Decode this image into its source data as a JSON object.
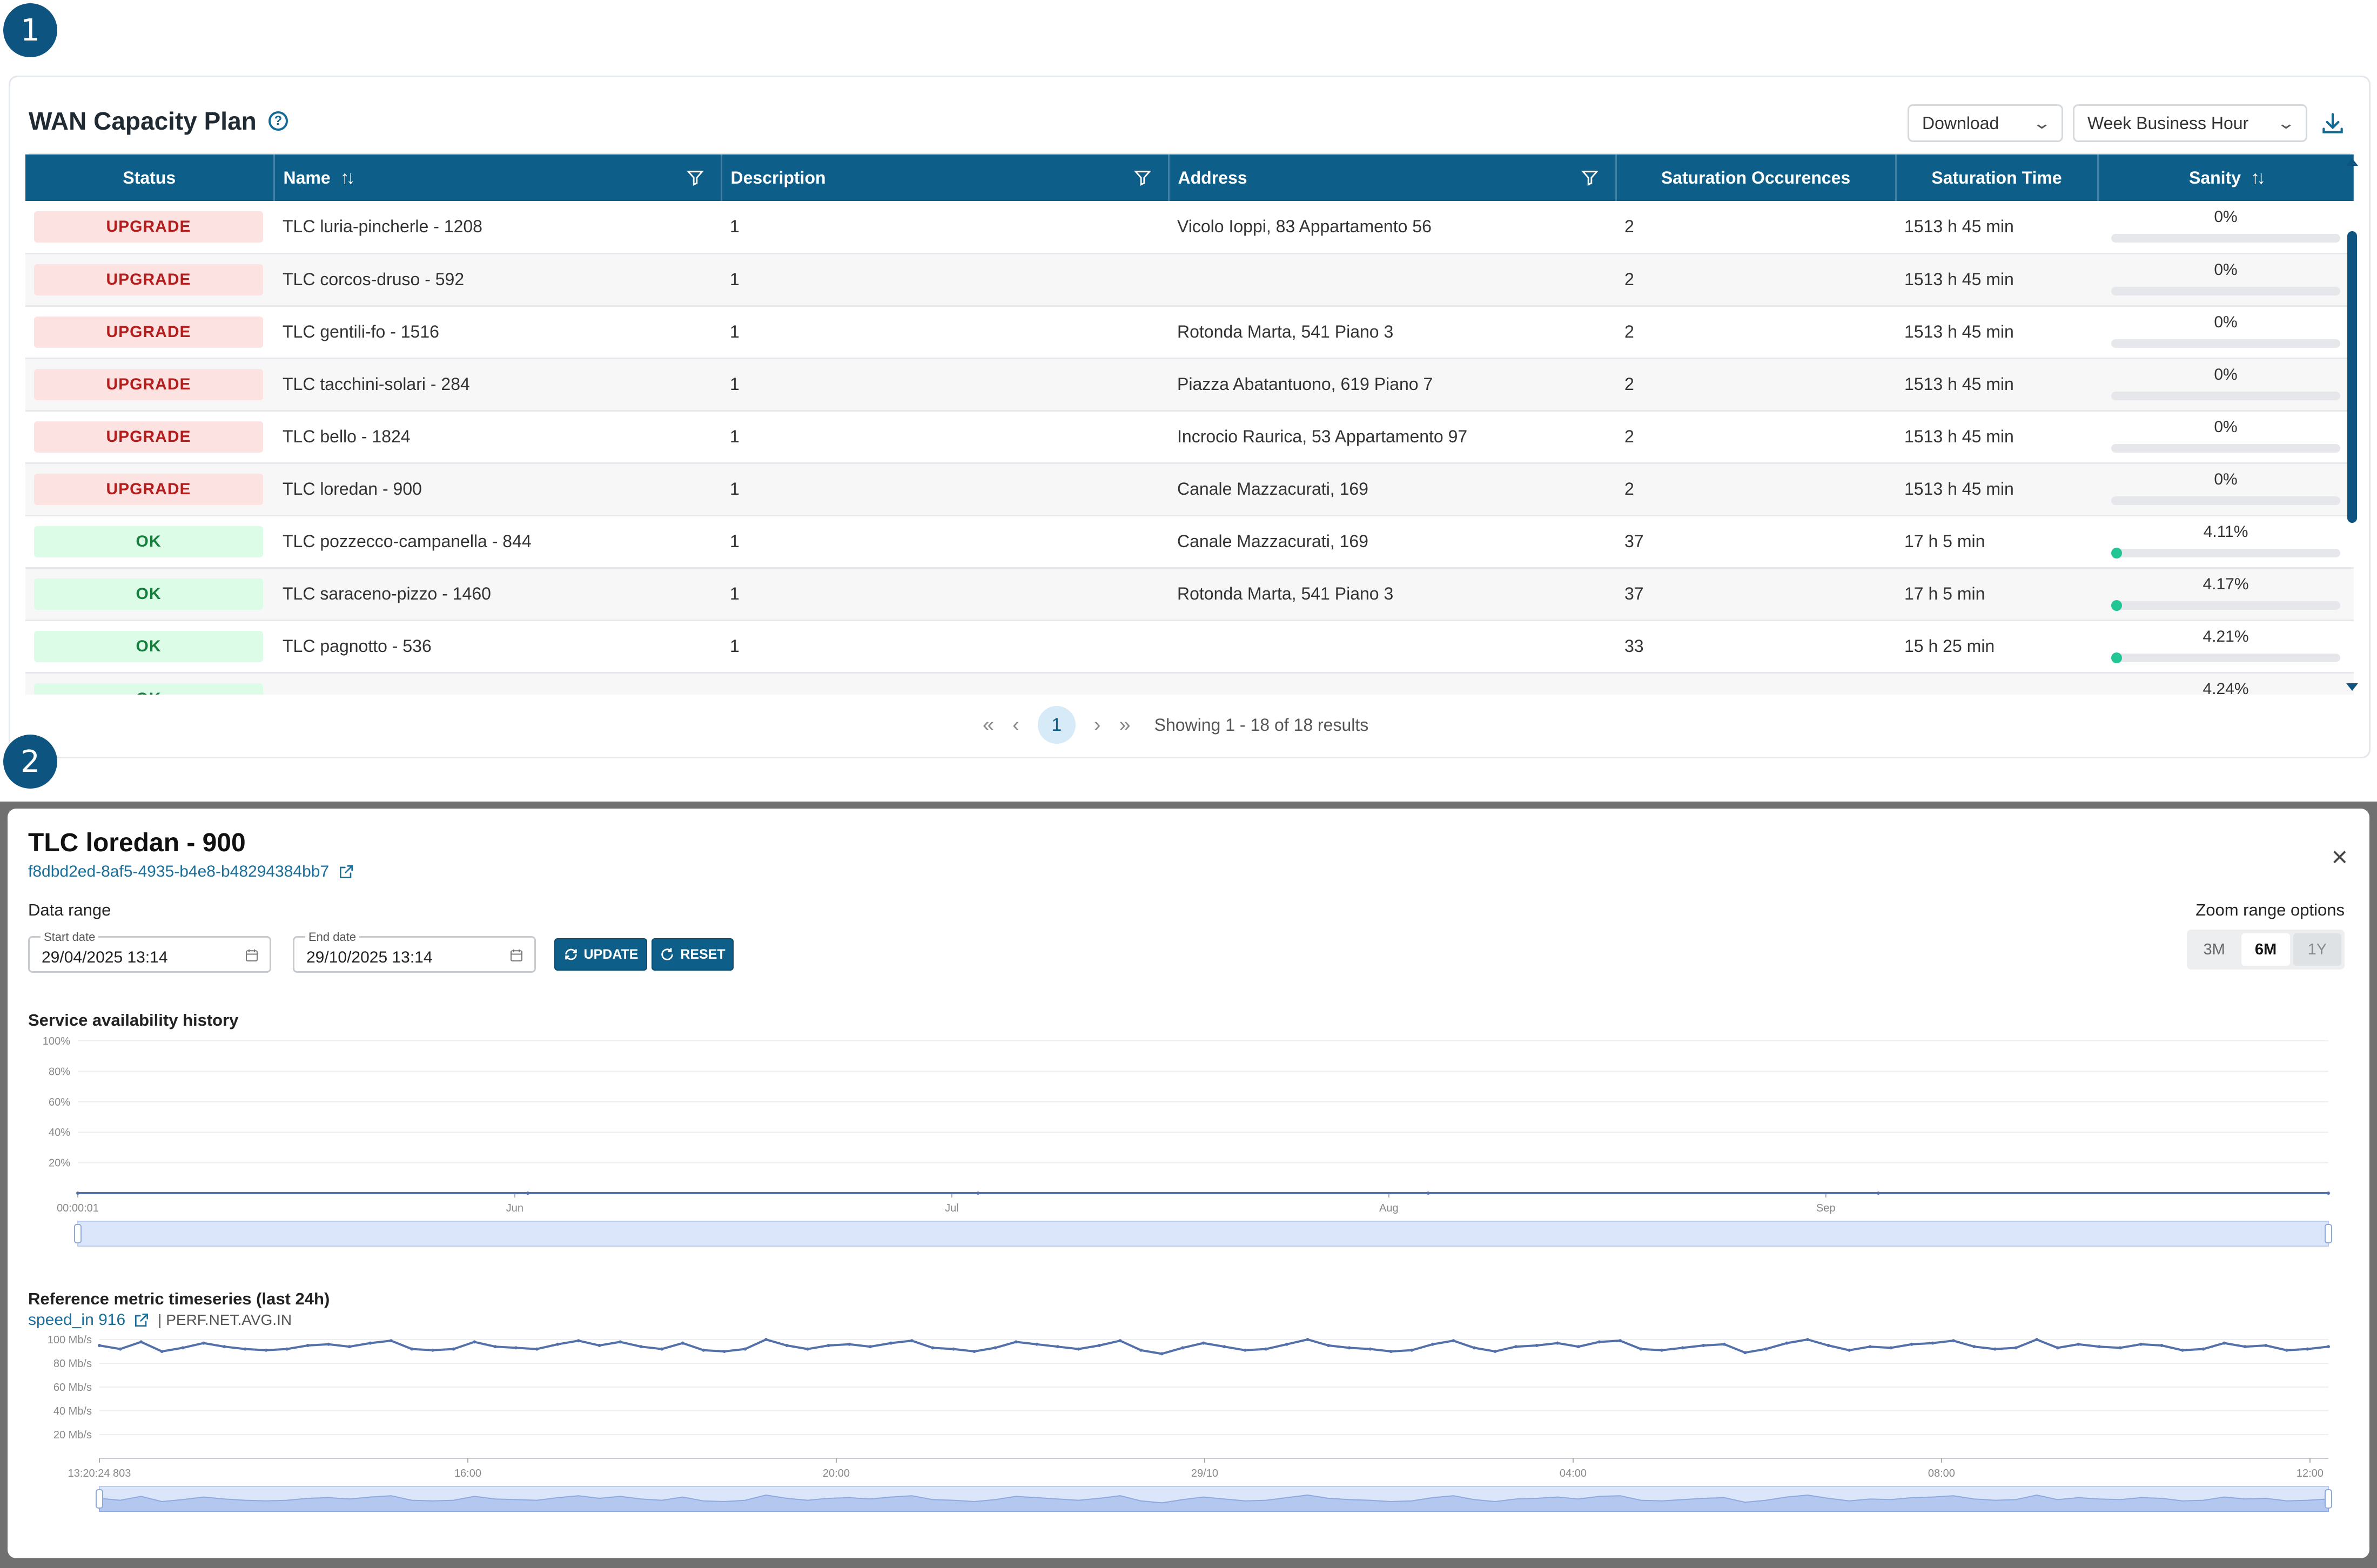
{
  "badges": [
    "1",
    "2"
  ],
  "capacity_plan": {
    "title": "WAN Capacity Plan",
    "icons": {
      "help": "help-circle-icon",
      "download": "download-icon"
    },
    "download_select": "Download",
    "period_select": "Week Business Hour",
    "columns": {
      "status": "Status",
      "name": "Name",
      "description": "Description",
      "address": "Address",
      "saturation_occurences": "Saturation Occurences",
      "saturation_time": "Saturation Time",
      "sanity": "Sanity"
    },
    "rows": [
      {
        "status": "UPGRADE",
        "name": "TLC luria-pincherle - 1208",
        "description": "1",
        "address": "Vicolo Ioppi, 83 Appartamento 56",
        "occurences": "2",
        "time": "1513 h 45 min",
        "sanity": "0%",
        "sanity_value": 0
      },
      {
        "status": "UPGRADE",
        "name": "TLC corcos-druso - 592",
        "description": "1",
        "address": "",
        "occurences": "2",
        "time": "1513 h 45 min",
        "sanity": "0%",
        "sanity_value": 0
      },
      {
        "status": "UPGRADE",
        "name": "TLC gentili-fo - 1516",
        "description": "1",
        "address": "Rotonda Marta, 541 Piano 3",
        "occurences": "2",
        "time": "1513 h 45 min",
        "sanity": "0%",
        "sanity_value": 0
      },
      {
        "status": "UPGRADE",
        "name": "TLC tacchini-solari - 284",
        "description": "1",
        "address": "Piazza Abatantuono, 619 Piano 7",
        "occurences": "2",
        "time": "1513 h 45 min",
        "sanity": "0%",
        "sanity_value": 0
      },
      {
        "status": "UPGRADE",
        "name": "TLC bello - 1824",
        "description": "1",
        "address": "Incrocio Raurica, 53 Appartamento 97",
        "occurences": "2",
        "time": "1513 h 45 min",
        "sanity": "0%",
        "sanity_value": 0
      },
      {
        "status": "UPGRADE",
        "name": "TLC loredan - 900",
        "description": "1",
        "address": "Canale Mazzacurati, 169",
        "occurences": "2",
        "time": "1513 h 45 min",
        "sanity": "0%",
        "sanity_value": 0
      },
      {
        "status": "OK",
        "name": "TLC pozzecco-campanella - 844",
        "description": "1",
        "address": "Canale Mazzacurati, 169",
        "occurences": "37",
        "time": "17 h 5 min",
        "sanity": "4.11%",
        "sanity_value": 4.11
      },
      {
        "status": "OK",
        "name": "TLC saraceno-pizzo - 1460",
        "description": "1",
        "address": "Rotonda Marta, 541 Piano 3",
        "occurences": "37",
        "time": "17 h 5 min",
        "sanity": "4.17%",
        "sanity_value": 4.17
      },
      {
        "status": "OK",
        "name": "TLC pagnotto - 536",
        "description": "1",
        "address": "",
        "occurences": "33",
        "time": "15 h 25 min",
        "sanity": "4.21%",
        "sanity_value": 4.21
      },
      {
        "status": "OK",
        "name": "",
        "description": "",
        "address": "",
        "occurences": "",
        "time": "",
        "sanity": "4.24%",
        "sanity_value": 4.24
      }
    ],
    "pagination": {
      "first": "«",
      "prev": "‹",
      "current": "1",
      "next": "›",
      "last": "»",
      "info": "Showing 1 - 18 of 18 results"
    }
  },
  "detail": {
    "title": "TLC loredan - 900",
    "uuid": "f8dbd2ed-8af5-4935-b4e8-b48294384bb7",
    "data_range_label": "Data range",
    "start_date_label": "Start date",
    "start_date": "29/04/2025 13:14",
    "end_date_label": "End date",
    "end_date": "29/10/2025 13:14",
    "update_label": "UPDATE",
    "reset_label": "RESET",
    "zoom_label": "Zoom range options",
    "zoom_options": [
      "3M",
      "6M",
      "1Y"
    ],
    "zoom_selected": "6M",
    "availability_title": "Service availability history",
    "metric_title": "Reference metric timeseries (last 24h)",
    "metric_link": "speed_in 916",
    "metric_name": "| PERF.NET.AVG.IN"
  },
  "chart_data": [
    {
      "type": "line",
      "title": "Service availability history",
      "y_ticks": [
        "100%",
        "80%",
        "60%",
        "40%",
        "20%"
      ],
      "ylim": [
        0,
        100
      ],
      "x_ticks": [
        "00:00:01",
        "Jun",
        "Jul",
        "Aug",
        "Sep"
      ],
      "series": [
        {
          "values": [
            0,
            0,
            0,
            0,
            0,
            0
          ]
        }
      ],
      "grid": true,
      "has_zoom_slider": true
    },
    {
      "type": "line",
      "title": "Reference metric timeseries (last 24h)",
      "y_ticks": [
        "100 Mb/s",
        "80 Mb/s",
        "60 Mb/s",
        "40 Mb/s",
        "20 Mb/s"
      ],
      "ylim": [
        0,
        100
      ],
      "x_ticks": [
        "13:20:24 803",
        "16:00",
        "20:00",
        "29/10",
        "04:00",
        "08:00",
        "12:00"
      ],
      "series": [
        {
          "values": [
            95,
            92,
            98,
            90,
            93,
            97,
            94,
            92,
            91,
            92,
            95,
            96,
            94,
            97,
            99,
            92,
            91,
            92,
            98,
            94,
            93,
            92,
            96,
            99,
            95,
            98,
            94,
            92,
            97,
            91,
            90,
            92,
            100,
            95,
            92,
            95,
            96,
            94,
            97,
            99,
            93,
            92,
            90,
            93,
            98,
            96,
            94,
            92,
            95,
            99,
            91,
            88,
            93,
            97,
            94,
            91,
            92,
            96,
            100,
            95,
            93,
            92,
            90,
            91,
            96,
            99,
            93,
            90,
            94,
            95,
            97,
            94,
            98,
            99,
            92,
            91,
            93,
            95,
            96,
            89,
            92,
            97,
            100,
            95,
            91,
            94,
            93,
            96,
            97,
            99,
            94,
            92,
            93,
            100,
            93,
            96,
            94,
            93,
            96,
            95,
            91,
            92,
            97,
            94,
            95,
            91,
            92,
            94
          ]
        }
      ],
      "grid": true,
      "has_zoom_slider": true
    }
  ]
}
